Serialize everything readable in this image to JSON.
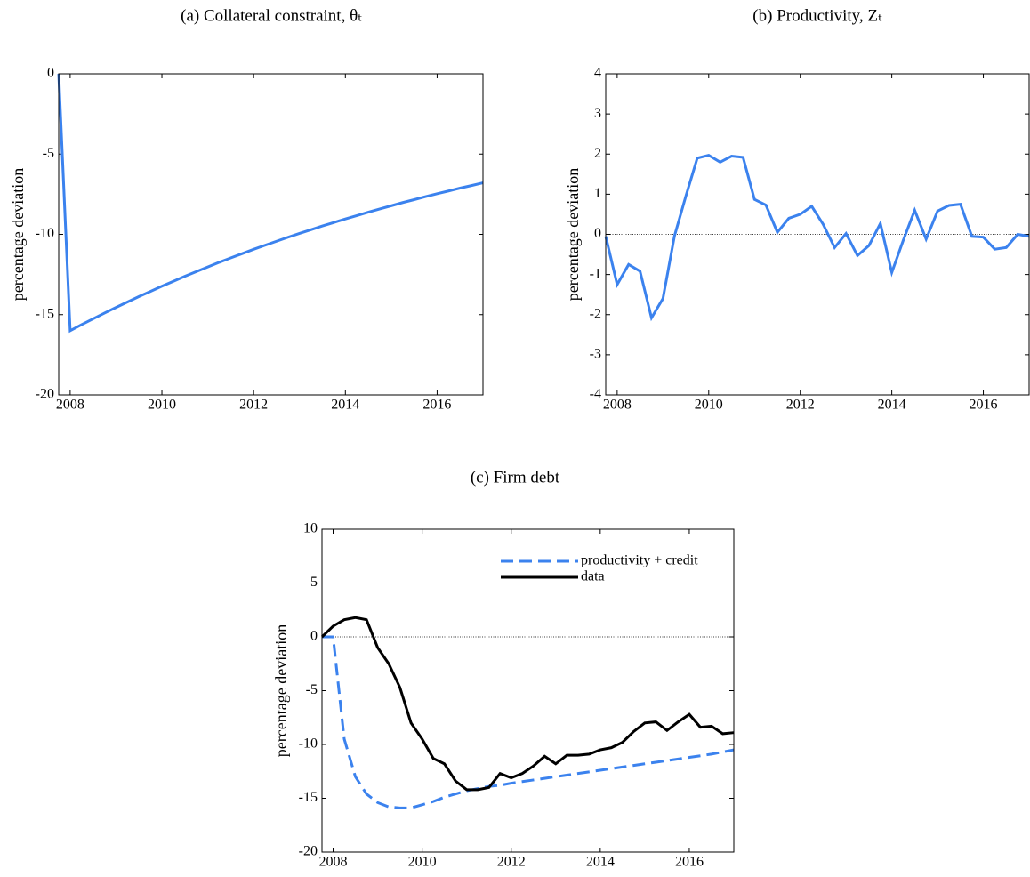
{
  "chart_data": [
    {
      "type": "line",
      "title": "(a) Collateral constraint, θₜ",
      "ylabel": "percentage deviation",
      "x": [
        2007.75,
        2008,
        2008.25,
        2008.5,
        2008.75,
        2009,
        2009.25,
        2009.5,
        2009.75,
        2010,
        2010.25,
        2010.5,
        2010.75,
        2011,
        2011.25,
        2011.5,
        2011.75,
        2012,
        2012.25,
        2012.5,
        2012.75,
        2013,
        2013.25,
        2013.5,
        2013.75,
        2014,
        2014.25,
        2014.5,
        2014.75,
        2015,
        2015.25,
        2015.5,
        2015.75,
        2016,
        2016.25,
        2016.5,
        2016.75,
        2017
      ],
      "values": [
        0,
        -16.0,
        -15.62,
        -15.26,
        -14.9,
        -14.55,
        -14.21,
        -13.87,
        -13.55,
        -13.23,
        -12.92,
        -12.61,
        -12.32,
        -12.03,
        -11.74,
        -11.47,
        -11.2,
        -10.93,
        -10.68,
        -10.43,
        -10.18,
        -9.94,
        -9.71,
        -9.48,
        -9.26,
        -9.04,
        -8.83,
        -8.62,
        -8.42,
        -8.22,
        -8.02,
        -7.84,
        -7.65,
        -7.47,
        -7.3,
        -7.12,
        -6.96,
        -6.79
      ],
      "color": "#3b82ee",
      "xlim": [
        2007.75,
        2017
      ],
      "xticks": [
        2008,
        2010,
        2012,
        2014,
        2016
      ],
      "ylim": [
        -20,
        0
      ],
      "yticks": [
        -20,
        -15,
        -10,
        -5,
        0
      ],
      "zero_line": true
    },
    {
      "type": "line",
      "title": "(b) Productivity, Zₜ",
      "ylabel": "percentage deviation",
      "x": [
        2007.75,
        2008,
        2008.25,
        2008.5,
        2008.75,
        2009,
        2009.25,
        2009.5,
        2009.75,
        2010,
        2010.25,
        2010.5,
        2010.75,
        2011,
        2011.25,
        2011.5,
        2011.75,
        2012,
        2012.25,
        2012.5,
        2012.75,
        2013,
        2013.25,
        2013.5,
        2013.75,
        2014,
        2014.25,
        2014.5,
        2014.75,
        2015,
        2015.25,
        2015.5,
        2015.75,
        2016,
        2016.25,
        2016.5,
        2016.75,
        2017
      ],
      "values": [
        -0.05,
        -1.25,
        -0.75,
        -0.92,
        -2.08,
        -1.6,
        -0.05,
        0.95,
        1.9,
        1.97,
        1.8,
        1.95,
        1.92,
        0.87,
        0.73,
        0.05,
        0.4,
        0.5,
        0.7,
        0.25,
        -0.33,
        0.02,
        -0.53,
        -0.28,
        0.27,
        -0.95,
        -0.15,
        0.6,
        -0.12,
        0.58,
        0.72,
        0.75,
        -0.05,
        -0.07,
        -0.37,
        -0.33,
        0,
        -0.05
      ],
      "color": "#3b82ee",
      "xlim": [
        2007.75,
        2017
      ],
      "xticks": [
        2008,
        2010,
        2012,
        2014,
        2016
      ],
      "ylim": [
        -4,
        4
      ],
      "yticks": [
        -4,
        -3,
        -2,
        -1,
        0,
        1,
        2,
        3,
        4
      ],
      "zero_line": true
    },
    {
      "type": "line",
      "title": "(c) Firm debt",
      "ylabel": "percentage deviation",
      "x": [
        2007.75,
        2008,
        2008.25,
        2008.5,
        2008.75,
        2009,
        2009.25,
        2009.5,
        2009.75,
        2010,
        2010.25,
        2010.5,
        2010.75,
        2011,
        2011.25,
        2011.5,
        2011.75,
        2012,
        2012.25,
        2012.5,
        2012.75,
        2013,
        2013.25,
        2013.5,
        2013.75,
        2014,
        2014.25,
        2014.5,
        2014.75,
        2015,
        2015.25,
        2015.5,
        2015.75,
        2016,
        2016.25,
        2016.5,
        2016.75,
        2017
      ],
      "series": [
        {
          "name": "productivity + credit",
          "color": "#3b82ee",
          "style": "dashed",
          "values": [
            0,
            0,
            -9.5,
            -13,
            -14.6,
            -15.4,
            -15.8,
            -15.9,
            -15.9,
            -15.6,
            -15.3,
            -14.9,
            -14.6,
            -14.3,
            -14.1,
            -13.9,
            -13.8,
            -13.6,
            -13.45,
            -13.3,
            -13.15,
            -13.0,
            -12.85,
            -12.7,
            -12.55,
            -12.4,
            -12.25,
            -12.1,
            -11.95,
            -11.8,
            -11.65,
            -11.5,
            -11.35,
            -11.2,
            -11.05,
            -10.9,
            -10.7,
            -10.5
          ]
        },
        {
          "name": "data",
          "color": "#000000",
          "style": "solid",
          "values": [
            0,
            1.0,
            1.6,
            1.8,
            1.6,
            -1.0,
            -2.5,
            -4.7,
            -8.0,
            -9.5,
            -11.3,
            -11.8,
            -13.4,
            -14.2,
            -14.2,
            -14.0,
            -12.7,
            -13.1,
            -12.7,
            -12.0,
            -11.1,
            -11.8,
            -11.0,
            -11.0,
            -10.9,
            -10.5,
            -10.3,
            -9.8,
            -8.8,
            -8.0,
            -7.9,
            -8.7,
            -7.9,
            -7.2,
            -8.4,
            -8.3,
            -9.0,
            -8.9
          ]
        }
      ],
      "xlim": [
        2007.75,
        2017
      ],
      "xticks": [
        2008,
        2010,
        2012,
        2014,
        2016
      ],
      "ylim": [
        -20,
        10
      ],
      "yticks": [
        -20,
        -15,
        -10,
        -5,
        0,
        5,
        10
      ],
      "zero_line": true,
      "legend": "upper right"
    }
  ]
}
